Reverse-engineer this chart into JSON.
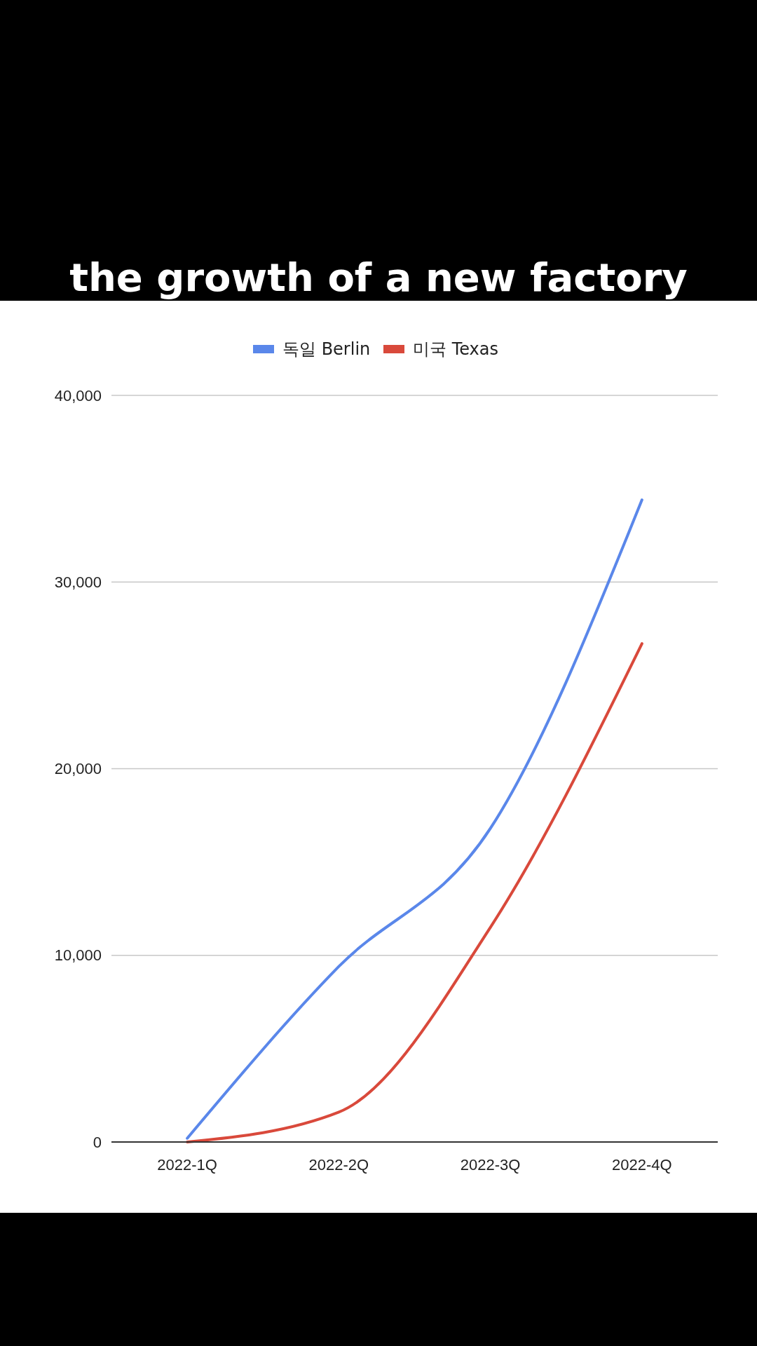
{
  "chart_data": {
    "type": "line",
    "title": "the growth of a new factory",
    "categories": [
      "2022-1Q",
      "2022-2Q",
      "2022-3Q",
      "2022-4Q"
    ],
    "series": [
      {
        "name": "독일 Berlin",
        "color": "#5a87ea",
        "values": [
          200,
          9400,
          16800,
          34400
        ]
      },
      {
        "name": "미국 Texas",
        "color": "#d9493b",
        "values": [
          0,
          1600,
          11500,
          26700
        ]
      }
    ],
    "ylim": [
      0,
      40000
    ],
    "yticks": [
      {
        "value": 0,
        "label": "0"
      },
      {
        "value": 10000,
        "label": "10,000"
      },
      {
        "value": 20000,
        "label": "20,000"
      },
      {
        "value": 30000,
        "label": "30,000"
      },
      {
        "value": 40000,
        "label": "40,000"
      }
    ],
    "grid": "y",
    "legend": "top",
    "marker": "none",
    "line_style": "solid"
  }
}
